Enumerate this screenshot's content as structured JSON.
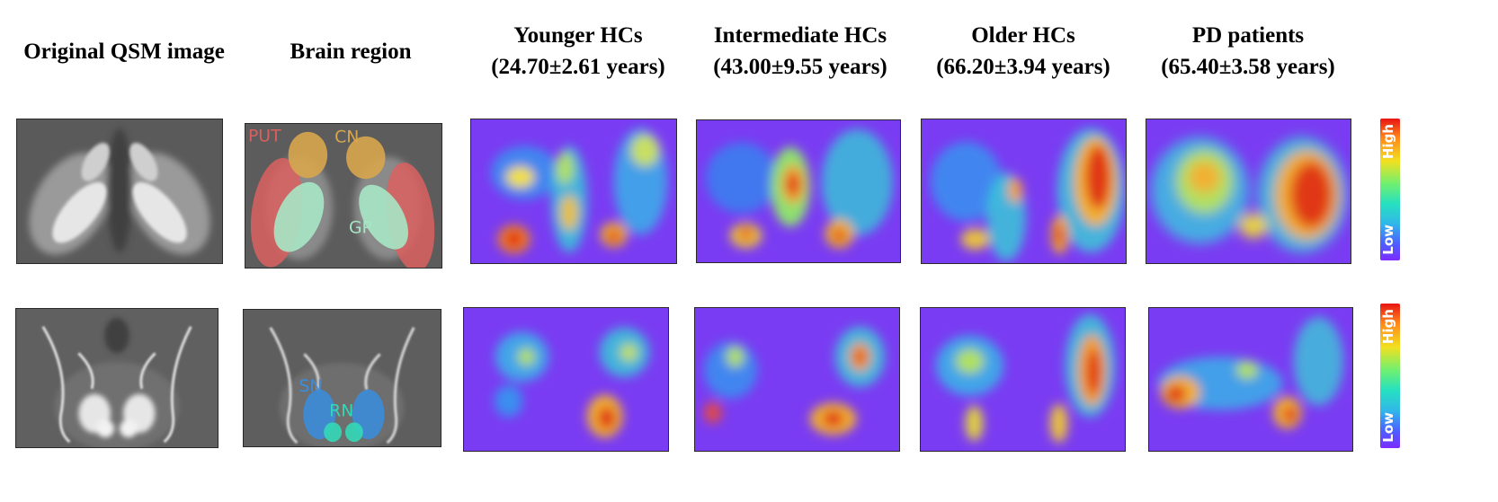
{
  "columns": {
    "original": {
      "title": "Original QSM image"
    },
    "region": {
      "title": "Brain region"
    },
    "younger": {
      "title": "Younger HCs",
      "subtitle": "(24.70±2.61 years)"
    },
    "intermediate": {
      "title": "Intermediate HCs",
      "subtitle": "(43.00±9.55 years)"
    },
    "older": {
      "title": "Older HCs",
      "subtitle": "(66.20±3.94 years)"
    },
    "pd": {
      "title": "PD patients",
      "subtitle": "(65.40±3.58 years)"
    }
  },
  "regions": {
    "row1": {
      "put": "PUT",
      "cn": "CN",
      "gp": "GP"
    },
    "row2": {
      "sn": "SN",
      "rn": "RN"
    }
  },
  "region_colors": {
    "put": "#d9605f",
    "cn": "#d8a64e",
    "gp": "#a6e6c4",
    "sn": "#3a8ee0",
    "rn": "#33d8b6"
  },
  "colorbar": {
    "high": "High",
    "low": "Low",
    "high_color": "#e81414",
    "low_color": "#7c2cff"
  }
}
